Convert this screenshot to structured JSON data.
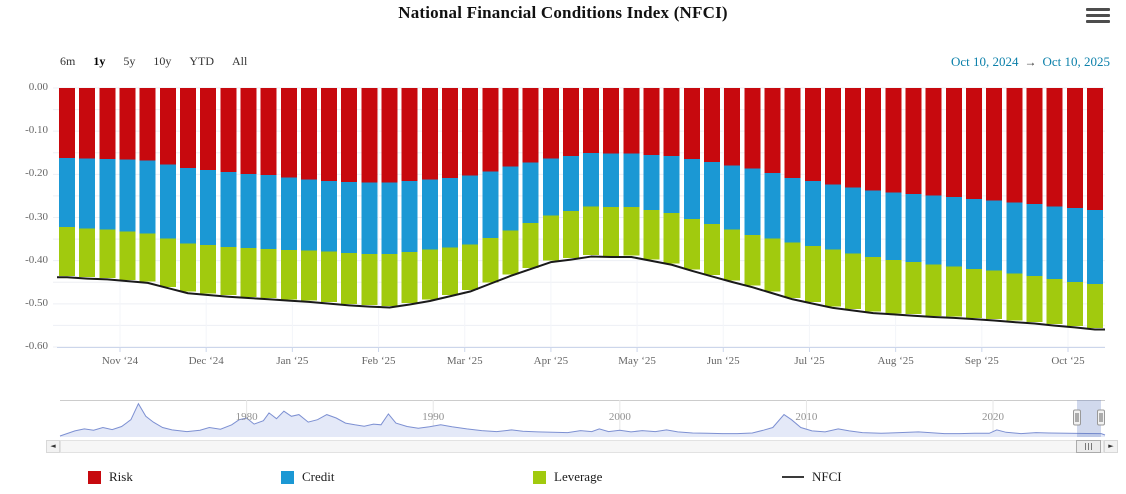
{
  "title": "National Financial Conditions Index (NFCI)",
  "range_selector": {
    "buttons": [
      "6m",
      "1y",
      "5y",
      "10y",
      "YTD",
      "All"
    ],
    "selected": "1y",
    "from": "Oct 10, 2024",
    "arrow": "→",
    "to": "Oct 10, 2025"
  },
  "colors": {
    "risk": "#c7090e",
    "credit": "#1b98d4",
    "leverage": "#a1ca0e",
    "nfci_line": "#1a1a1a",
    "date_text": "#0c80aa",
    "grid": "#edeff4",
    "month_grid": "#f3f5f9",
    "axis_line": "#ccd6eb",
    "navigator_line": "#7d90d2",
    "navigator_fill": "#e4e9f8",
    "navigator_grid": "#e6e6e6",
    "selection_mask": "rgba(91,119,190,0.28)"
  },
  "chart_data": {
    "type": "bar",
    "stacked": true,
    "title": "National Financial Conditions Index (NFCI)",
    "ylim": [
      -0.6,
      0.0
    ],
    "y_tick_labels": [
      "0.00",
      "-0.10",
      "-0.20",
      "-0.30",
      "-0.40",
      "-0.50",
      "-0.60"
    ],
    "x_labels": [
      "Nov ‘24",
      "Dec ‘24",
      "Jan ‘25",
      "Feb ‘25",
      "Mar ‘25",
      "Apr ‘25",
      "May ‘25",
      "Jun ‘25",
      "Jul ‘25",
      "Aug ‘25",
      "Sep ‘25",
      "Oct ‘25"
    ],
    "frequency": "weekly",
    "series": [
      {
        "name": "Risk",
        "values": [
          -0.162,
          -0.163,
          -0.164,
          -0.166,
          -0.168,
          -0.177,
          -0.185,
          -0.19,
          -0.195,
          -0.199,
          -0.202,
          -0.207,
          -0.212,
          -0.215,
          -0.218,
          -0.219,
          -0.219,
          -0.216,
          -0.212,
          -0.208,
          -0.203,
          -0.193,
          -0.182,
          -0.173,
          -0.163,
          -0.157,
          -0.151,
          -0.152,
          -0.152,
          -0.155,
          -0.158,
          -0.165,
          -0.172,
          -0.179,
          -0.186,
          -0.197,
          -0.208,
          -0.216,
          -0.224,
          -0.231,
          -0.238,
          -0.242,
          -0.245,
          -0.249,
          -0.252,
          -0.257,
          -0.261,
          -0.265,
          -0.269,
          -0.274,
          -0.278,
          -0.283
        ]
      },
      {
        "name": "Credit",
        "values": [
          -0.16,
          -0.162,
          -0.164,
          -0.167,
          -0.169,
          -0.172,
          -0.175,
          -0.174,
          -0.173,
          -0.172,
          -0.171,
          -0.168,
          -0.164,
          -0.164,
          -0.164,
          -0.165,
          -0.166,
          -0.164,
          -0.162,
          -0.161,
          -0.16,
          -0.154,
          -0.148,
          -0.14,
          -0.132,
          -0.128,
          -0.123,
          -0.124,
          -0.124,
          -0.128,
          -0.132,
          -0.138,
          -0.143,
          -0.149,
          -0.154,
          -0.152,
          -0.15,
          -0.15,
          -0.15,
          -0.152,
          -0.154,
          -0.156,
          -0.158,
          -0.16,
          -0.161,
          -0.162,
          -0.162,
          -0.165,
          -0.167,
          -0.169,
          -0.171,
          -0.171
        ]
      },
      {
        "name": "Leverage",
        "values": [
          -0.113,
          -0.113,
          -0.112,
          -0.112,
          -0.111,
          -0.112,
          -0.112,
          -0.112,
          -0.112,
          -0.113,
          -0.113,
          -0.115,
          -0.116,
          -0.117,
          -0.118,
          -0.119,
          -0.12,
          -0.118,
          -0.116,
          -0.111,
          -0.105,
          -0.104,
          -0.102,
          -0.104,
          -0.105,
          -0.109,
          -0.113,
          -0.113,
          -0.112,
          -0.114,
          -0.116,
          -0.117,
          -0.118,
          -0.118,
          -0.118,
          -0.123,
          -0.128,
          -0.13,
          -0.132,
          -0.129,
          -0.126,
          -0.124,
          -0.121,
          -0.119,
          -0.116,
          -0.114,
          -0.112,
          -0.109,
          -0.106,
          -0.104,
          -0.102,
          -0.102
        ]
      }
    ],
    "line_series": {
      "name": "NFCI",
      "values": [
        -0.435,
        -0.438,
        -0.44,
        -0.444,
        -0.448,
        -0.46,
        -0.472,
        -0.476,
        -0.48,
        -0.483,
        -0.486,
        -0.489,
        -0.492,
        -0.496,
        -0.5,
        -0.503,
        -0.505,
        -0.498,
        -0.49,
        -0.479,
        -0.468,
        -0.45,
        -0.432,
        -0.416,
        -0.4,
        -0.394,
        -0.387,
        -0.388,
        -0.388,
        -0.397,
        -0.406,
        -0.42,
        -0.433,
        -0.446,
        -0.458,
        -0.472,
        -0.486,
        -0.496,
        -0.506,
        -0.512,
        -0.518,
        -0.521,
        -0.524,
        -0.527,
        -0.529,
        -0.532,
        -0.535,
        -0.539,
        -0.542,
        -0.547,
        -0.551,
        -0.556
      ]
    },
    "navigator": {
      "year_labels": [
        "1980",
        "1990",
        "2000",
        "2010",
        "2020"
      ],
      "year_start": 1970,
      "year_end": 2026,
      "normalized_points": [
        [
          1970.8,
          0.12
        ],
        [
          1971.3,
          0.18
        ],
        [
          1971.8,
          0.14
        ],
        [
          1972.3,
          0.22
        ],
        [
          1972.8,
          0.16
        ],
        [
          1973.3,
          0.25
        ],
        [
          1973.8,
          0.45
        ],
        [
          1974.2,
          0.92
        ],
        [
          1974.6,
          0.55
        ],
        [
          1975,
          0.38
        ],
        [
          1975.5,
          0.22
        ],
        [
          1976,
          0.15
        ],
        [
          1976.8,
          0.1
        ],
        [
          1977.5,
          0.14
        ],
        [
          1978,
          0.22
        ],
        [
          1978.6,
          0.17
        ],
        [
          1979.2,
          0.3
        ],
        [
          1979.6,
          0.45
        ],
        [
          1980,
          0.5
        ],
        [
          1980.4,
          0.32
        ],
        [
          1980.9,
          0.42
        ],
        [
          1981.2,
          0.65
        ],
        [
          1981.6,
          0.48
        ],
        [
          1982,
          0.7
        ],
        [
          1982.4,
          0.55
        ],
        [
          1982.8,
          0.6
        ],
        [
          1983.3,
          0.38
        ],
        [
          1983.8,
          0.45
        ],
        [
          1984.3,
          0.6
        ],
        [
          1984.8,
          0.5
        ],
        [
          1985.3,
          0.35
        ],
        [
          1985.8,
          0.3
        ],
        [
          1986.3,
          0.26
        ],
        [
          1986.8,
          0.32
        ],
        [
          1987.2,
          0.3
        ],
        [
          1987.6,
          0.62
        ],
        [
          1988,
          0.35
        ],
        [
          1988.6,
          0.25
        ],
        [
          1989.2,
          0.2
        ],
        [
          1989.8,
          0.24
        ],
        [
          1990.4,
          0.3
        ],
        [
          1991,
          0.24
        ],
        [
          1991.8,
          0.18
        ],
        [
          1992.6,
          0.13
        ],
        [
          1993.4,
          0.1
        ],
        [
          1994.2,
          0.15
        ],
        [
          1994.8,
          0.11
        ],
        [
          1995.6,
          0.09
        ],
        [
          1996.4,
          0.08
        ],
        [
          1997.2,
          0.07
        ],
        [
          1997.9,
          0.13
        ],
        [
          1998.5,
          0.1
        ],
        [
          1998.9,
          0.18
        ],
        [
          1999.4,
          0.1
        ],
        [
          2000,
          0.14
        ],
        [
          2000.6,
          0.09
        ],
        [
          2001.2,
          0.13
        ],
        [
          2001.9,
          0.1
        ],
        [
          2002.5,
          0.15
        ],
        [
          2003.1,
          0.09
        ],
        [
          2003.9,
          0.06
        ],
        [
          2004.7,
          0.05
        ],
        [
          2005.5,
          0.04
        ],
        [
          2006.3,
          0.04
        ],
        [
          2007.1,
          0.06
        ],
        [
          2007.7,
          0.14
        ],
        [
          2008.2,
          0.22
        ],
        [
          2008.8,
          0.6
        ],
        [
          2009.2,
          0.45
        ],
        [
          2009.7,
          0.22
        ],
        [
          2010.3,
          0.12
        ],
        [
          2011,
          0.09
        ],
        [
          2011.7,
          0.18
        ],
        [
          2012.3,
          0.12
        ],
        [
          2013,
          0.07
        ],
        [
          2014,
          0.05
        ],
        [
          2015,
          0.07
        ],
        [
          2016,
          0.09
        ],
        [
          2016.6,
          0.07
        ],
        [
          2017.4,
          0.04
        ],
        [
          2018.2,
          0.04
        ],
        [
          2019,
          0.05
        ],
        [
          2019.8,
          0.05
        ],
        [
          2020.2,
          0.15
        ],
        [
          2020.7,
          0.08
        ],
        [
          2021.5,
          0.04
        ],
        [
          2022.3,
          0.07
        ],
        [
          2023,
          0.06
        ],
        [
          2024,
          0.05
        ],
        [
          2025,
          0.045
        ],
        [
          2025.8,
          0.04
        ]
      ],
      "selected_range": [
        "Oct 10, 2024",
        "Oct 10, 2025"
      ]
    }
  },
  "legend": {
    "items": [
      {
        "label": "Risk",
        "marker": "box",
        "color_key": "risk"
      },
      {
        "label": "Credit",
        "marker": "box",
        "color_key": "credit"
      },
      {
        "label": "Leverage",
        "marker": "box",
        "color_key": "leverage"
      },
      {
        "label": "NFCI",
        "marker": "line",
        "color_key": "nfci_line"
      }
    ]
  }
}
